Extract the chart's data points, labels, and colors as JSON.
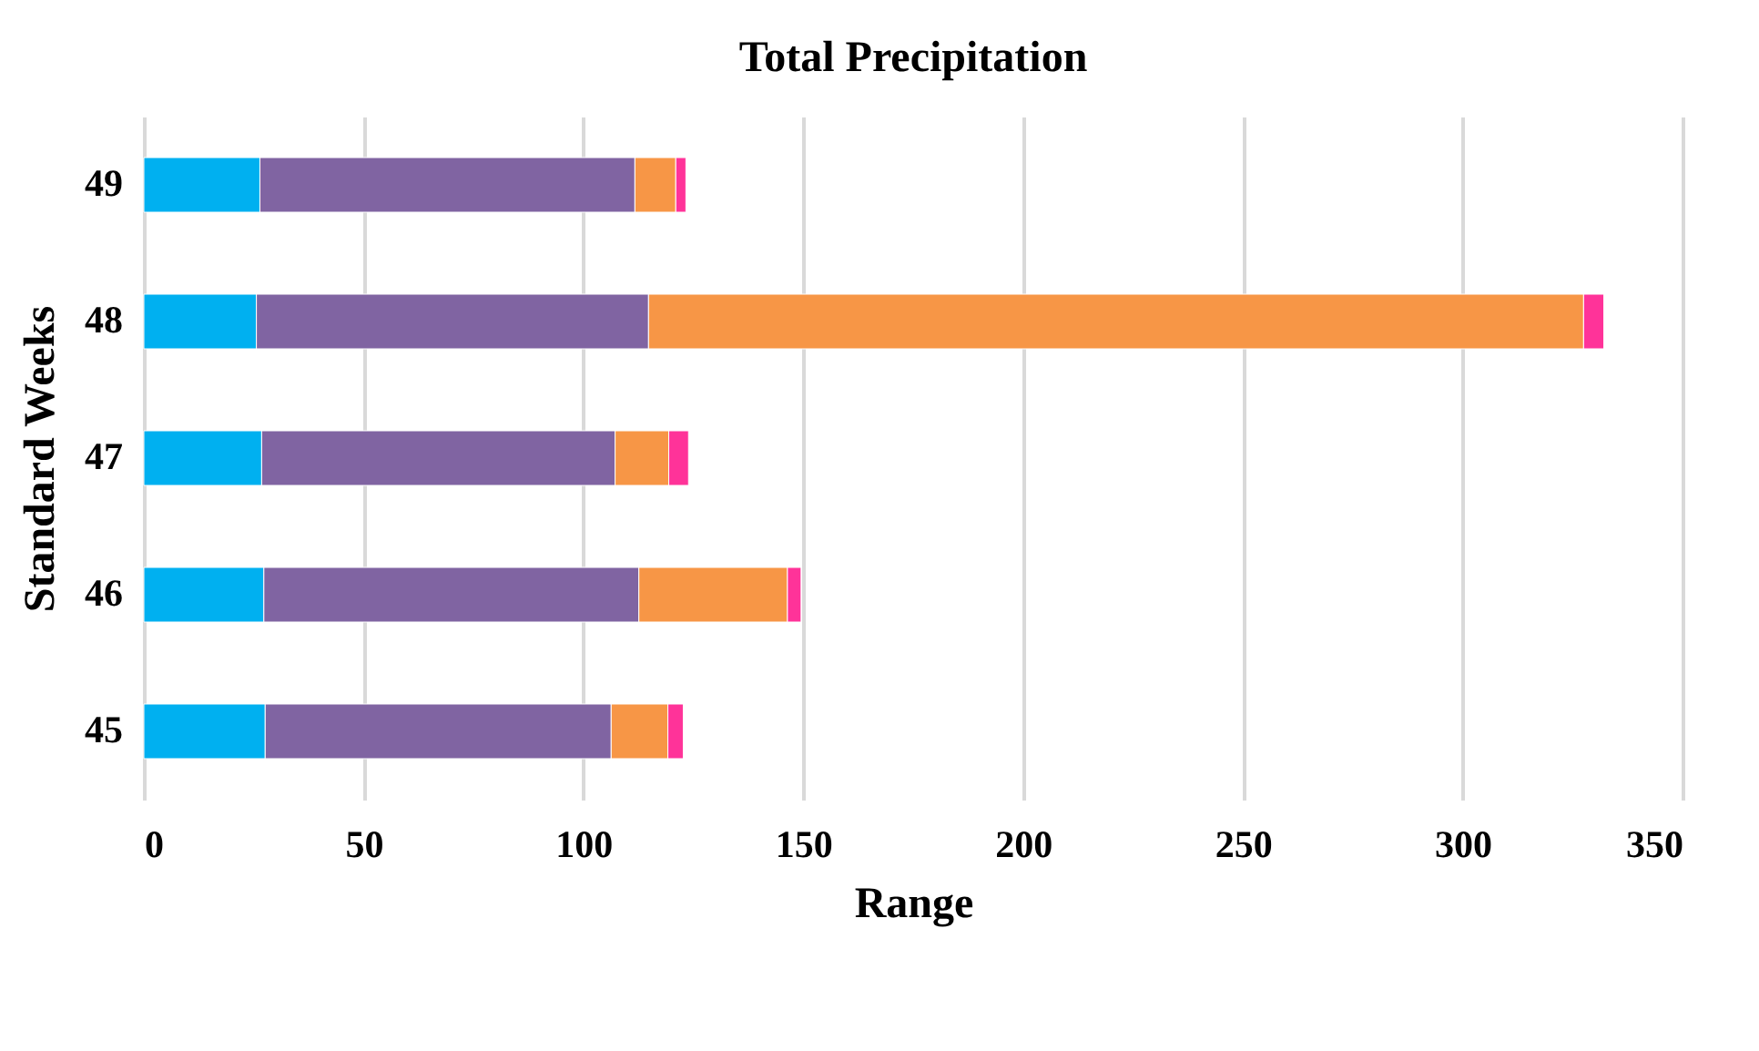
{
  "chart_data": {
    "type": "bar",
    "orientation": "horizontal",
    "stacked": true,
    "title": "Total Precipitation",
    "xlabel": "Range",
    "ylabel": "Standard Weeks",
    "categories": [
      "49",
      "48",
      "47",
      "46",
      "45"
    ],
    "series": [
      {
        "color": "#00b0f0",
        "values": [
          26.4,
          25.6,
          26.8,
          27.3,
          27.6
        ]
      },
      {
        "color": "#8064a2",
        "values": [
          85.3,
          89.2,
          80.4,
          85.3,
          78.7
        ]
      },
      {
        "color": "#f79646",
        "values": [
          9.3,
          212.7,
          12.2,
          33.8,
          12.9
        ]
      },
      {
        "color": "#ff3399",
        "values": [
          2.3,
          4.6,
          4.5,
          3.1,
          3.5
        ]
      }
    ],
    "xlim": [
      0,
      350
    ],
    "xticks": [
      0,
      50,
      100,
      150,
      200,
      250,
      300,
      350
    ],
    "grid": "x"
  }
}
